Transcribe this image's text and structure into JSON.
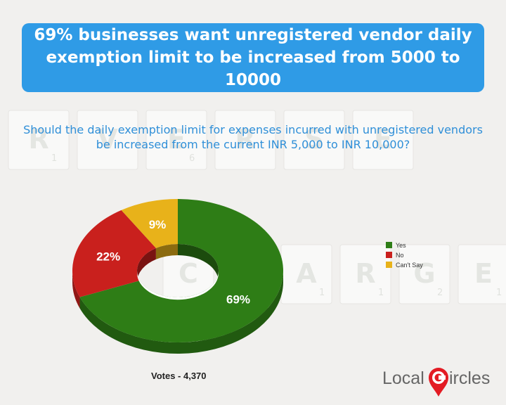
{
  "header": {
    "title": "69% businesses want unregistered vendor daily exemption limit to be increased from 5000 to 10000"
  },
  "question": "Should the daily exemption limit for expenses incurred with unregistered vendors be increased from the current INR 5,000 to INR 10,000?",
  "background_tiles": {
    "row1": [
      "R",
      "V",
      "E",
      "R",
      "S",
      "E"
    ],
    "row1_subs": [
      "1",
      "",
      "6",
      "",
      "",
      ""
    ],
    "row2": [
      "C",
      "H",
      "A",
      "R",
      "G",
      "E"
    ],
    "row2_subs": [
      "",
      "2",
      "1",
      "1",
      "2",
      "1"
    ]
  },
  "chart_data": {
    "type": "pie",
    "variant": "donut-3d",
    "title": "",
    "categories": [
      "Yes",
      "No",
      "Can't Say"
    ],
    "values": [
      69,
      22,
      9
    ],
    "labels": [
      "69%",
      "22%",
      "9%"
    ],
    "colors": [
      "#2e7d16",
      "#c9201d",
      "#e8b21a"
    ],
    "legend_position": "right"
  },
  "footer": {
    "votes": "Votes - 4,370"
  },
  "brand": {
    "name_part1": "Local",
    "name_part2": "ircles",
    "pin_color": "#e31b23",
    "text_color": "#666666",
    "icon": "map-pin-c-icon"
  }
}
